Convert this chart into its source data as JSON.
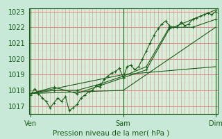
{
  "background_color": "#c8e8d8",
  "plot_bg_color": "#d8eed8",
  "grid_color_major": "#dd8888",
  "grid_color_minor": "#cc99aa",
  "grid_color_minor_v": "#ddaaaa",
  "line_color": "#1a5c1a",
  "marker_color": "#1a5c1a",
  "title": "Pression niveau de la mer( hPa )",
  "xtick_labels": [
    "Ven",
    "Sam",
    "Dim"
  ],
  "xtick_positions": [
    0,
    48,
    96
  ],
  "ylim": [
    1016.5,
    1023.2
  ],
  "yticks": [
    1017,
    1018,
    1019,
    1020,
    1021,
    1022,
    1023
  ],
  "xlim": [
    -1,
    97
  ],
  "series": [
    [
      0.0,
      1017.7,
      2.0,
      1018.1,
      4.0,
      1017.8,
      6.0,
      1017.5,
      8.0,
      1017.3,
      10.0,
      1016.9,
      12.0,
      1017.2,
      14.0,
      1017.5,
      16.0,
      1017.3,
      18.0,
      1017.6,
      20.0,
      1016.7,
      22.0,
      1016.9,
      24.0,
      1017.1,
      26.0,
      1017.5,
      28.0,
      1017.7,
      30.0,
      1017.9,
      32.0,
      1018.0,
      34.0,
      1018.3,
      36.0,
      1018.2,
      38.0,
      1018.7,
      40.0,
      1018.9,
      42.0,
      1019.1,
      44.0,
      1019.2,
      46.0,
      1019.4,
      48.0,
      1018.8,
      50.0,
      1019.5,
      52.0,
      1019.6,
      54.0,
      1019.3,
      56.0,
      1019.5,
      58.0,
      1020.0,
      60.0,
      1020.5,
      62.0,
      1021.0,
      64.0,
      1021.5,
      66.0,
      1021.9,
      68.0,
      1022.2,
      70.0,
      1022.4,
      72.0,
      1022.1,
      74.0,
      1022.0,
      76.0,
      1022.0,
      78.0,
      1022.3,
      80.0,
      1022.1,
      82.0,
      1022.2,
      84.0,
      1022.5,
      86.0,
      1022.6,
      88.0,
      1022.7,
      90.0,
      1022.8,
      92.0,
      1022.9,
      94.0,
      1022.8,
      96.0,
      1023.0
    ],
    [
      0.0,
      1017.8,
      12.0,
      1018.2,
      24.0,
      1017.8,
      36.0,
      1018.3,
      48.0,
      1018.8,
      60.0,
      1019.3,
      72.0,
      1021.9,
      84.0,
      1022.5,
      96.0,
      1023.1
    ],
    [
      0.0,
      1017.8,
      48.0,
      1018.0,
      96.0,
      1022.0
    ],
    [
      0.0,
      1017.8,
      12.0,
      1018.0,
      24.0,
      1018.0,
      36.0,
      1018.4,
      48.0,
      1018.9,
      60.0,
      1019.5,
      72.0,
      1022.0,
      84.0,
      1022.0,
      96.0,
      1022.5
    ],
    [
      0.0,
      1017.8,
      48.0,
      1019.0,
      96.0,
      1019.5
    ]
  ]
}
